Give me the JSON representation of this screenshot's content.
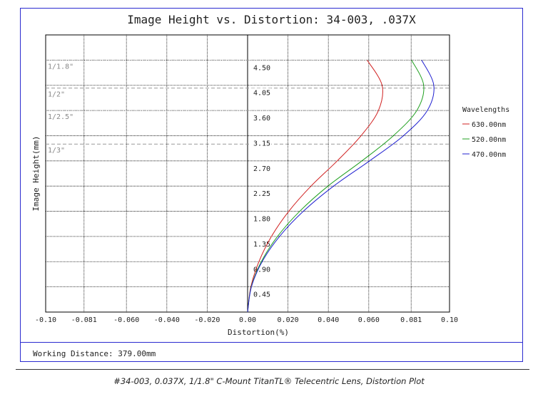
{
  "caption": "#34-003, 0.037X, 1/1.8\" C-Mount TitanTL® Telecentric Lens, Distortion Plot",
  "working_distance": "Working Distance: 379.00mm",
  "chart_data": {
    "type": "line",
    "title": "Image Height vs. Distortion: 34-003, .037X",
    "xlabel": "Distortion(%)",
    "ylabel": "Image Height(mm)",
    "xlim": [
      -0.1,
      0.1
    ],
    "ylim": [
      0,
      4.95
    ],
    "x_ticks": [
      -0.1,
      -0.081,
      -0.06,
      -0.04,
      -0.02,
      0.0,
      0.02,
      0.04,
      0.06,
      0.081,
      0.1
    ],
    "x_tick_labels": [
      "-0.10",
      "-0.081",
      "-0.060",
      "-0.040",
      "-0.020",
      "0.00",
      "0.020",
      "0.040",
      "0.060",
      "0.081",
      "0.10"
    ],
    "y_ticks": [
      0.45,
      0.9,
      1.35,
      1.8,
      2.25,
      2.7,
      3.15,
      3.6,
      4.05,
      4.5
    ],
    "y_tick_labels": [
      "0.45",
      "0.90",
      "1.35",
      "1.80",
      "2.25",
      "2.70",
      "3.15",
      "3.60",
      "4.05",
      "4.50"
    ],
    "grid": true,
    "sensor_lines": [
      {
        "label": "1/1.8\"",
        "y": 4.5
      },
      {
        "label": "1/2\"",
        "y": 4.0
      },
      {
        "label": "1/2.5\"",
        "y": 3.6
      },
      {
        "label": "1/3\"",
        "y": 3.0
      }
    ],
    "legend": {
      "title": "Wavelengths",
      "placement": "right"
    },
    "series": [
      {
        "name": "630.00nm",
        "color": "#d02020",
        "y": [
          0,
          0.45,
          0.9,
          1.35,
          1.8,
          2.25,
          2.7,
          3.15,
          3.6,
          4.05,
          4.5
        ],
        "x": [
          0,
          0.0016,
          0.0056,
          0.0118,
          0.0204,
          0.0314,
          0.0444,
          0.0562,
          0.0648,
          0.0666,
          0.0592
        ]
      },
      {
        "name": "520.00nm",
        "color": "#20a020",
        "y": [
          0,
          0.45,
          0.9,
          1.35,
          1.8,
          2.25,
          2.7,
          3.15,
          3.6,
          4.05,
          4.5
        ],
        "x": [
          0,
          0.0018,
          0.0068,
          0.0148,
          0.0258,
          0.0398,
          0.0566,
          0.0722,
          0.0838,
          0.0872,
          0.0812
        ]
      },
      {
        "name": "470.00nm",
        "color": "#2020d0",
        "y": [
          0,
          0.45,
          0.9,
          1.35,
          1.8,
          2.25,
          2.7,
          3.15,
          3.6,
          4.05,
          4.5
        ],
        "x": [
          0,
          0.0019,
          0.0072,
          0.0158,
          0.0276,
          0.0426,
          0.0604,
          0.0772,
          0.089,
          0.0922,
          0.0862
        ]
      }
    ]
  }
}
